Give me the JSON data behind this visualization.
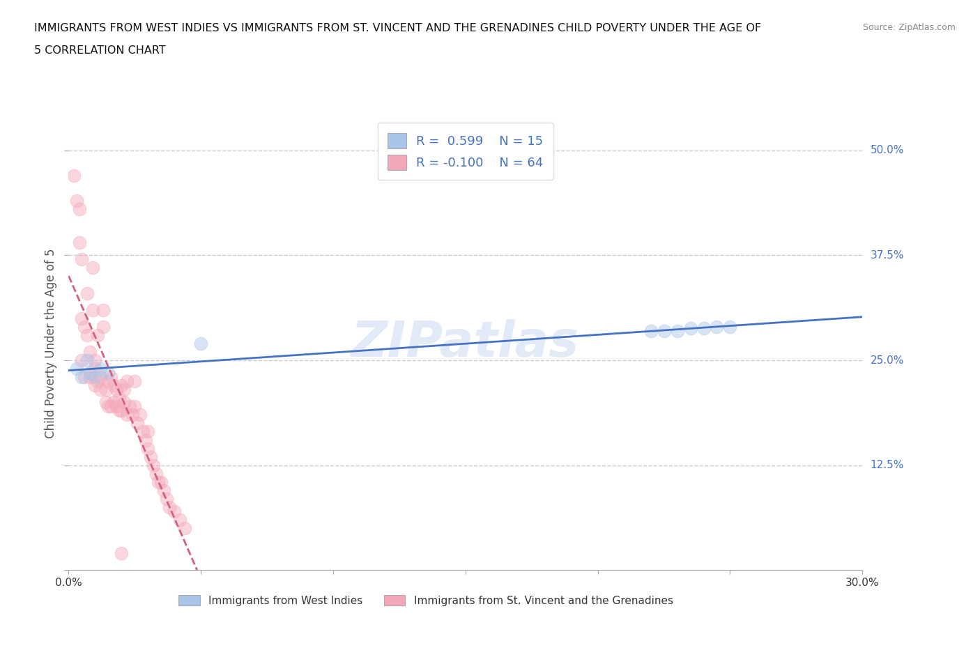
{
  "title_line1": "IMMIGRANTS FROM WEST INDIES VS IMMIGRANTS FROM ST. VINCENT AND THE GRENADINES CHILD POVERTY UNDER THE AGE OF",
  "title_line2": "5 CORRELATION CHART",
  "source": "Source: ZipAtlas.com",
  "ylabel": "Child Poverty Under the Age of 5",
  "watermark": "ZIPatlas",
  "xlim": [
    0.0,
    0.3
  ],
  "ylim": [
    0.0,
    0.54
  ],
  "xticks": [
    0.0,
    0.05,
    0.1,
    0.15,
    0.2,
    0.25,
    0.3
  ],
  "yticks": [
    0.0,
    0.125,
    0.25,
    0.375,
    0.5
  ],
  "right_ylabels": [
    "",
    "12.5%",
    "25.0%",
    "37.5%",
    "50.0%"
  ],
  "blue_R": 0.599,
  "blue_N": 15,
  "pink_R": -0.1,
  "pink_N": 64,
  "blue_color": "#a8c4e8",
  "pink_color": "#f4a7b9",
  "blue_line_color": "#4472c4",
  "pink_line_color": "#d46080",
  "blue_scatter_x": [
    0.003,
    0.005,
    0.007,
    0.008,
    0.01,
    0.012,
    0.015,
    0.05,
    0.22,
    0.225,
    0.23,
    0.235,
    0.24,
    0.245,
    0.25
  ],
  "blue_scatter_y": [
    0.24,
    0.23,
    0.25,
    0.235,
    0.23,
    0.24,
    0.235,
    0.27,
    0.285,
    0.285,
    0.285,
    0.288,
    0.288,
    0.29,
    0.29
  ],
  "pink_scatter_x": [
    0.002,
    0.003,
    0.004,
    0.004,
    0.005,
    0.005,
    0.005,
    0.006,
    0.006,
    0.007,
    0.007,
    0.008,
    0.008,
    0.009,
    0.009,
    0.01,
    0.01,
    0.01,
    0.011,
    0.011,
    0.012,
    0.012,
    0.013,
    0.013,
    0.014,
    0.014,
    0.015,
    0.015,
    0.016,
    0.016,
    0.017,
    0.017,
    0.018,
    0.018,
    0.019,
    0.019,
    0.02,
    0.02,
    0.021,
    0.021,
    0.022,
    0.022,
    0.023,
    0.024,
    0.025,
    0.025,
    0.026,
    0.027,
    0.028,
    0.029,
    0.03,
    0.03,
    0.031,
    0.032,
    0.033,
    0.034,
    0.035,
    0.036,
    0.037,
    0.038,
    0.04,
    0.042,
    0.044,
    0.02
  ],
  "pink_scatter_y": [
    0.47,
    0.44,
    0.43,
    0.39,
    0.37,
    0.3,
    0.25,
    0.29,
    0.23,
    0.28,
    0.33,
    0.26,
    0.23,
    0.31,
    0.36,
    0.22,
    0.24,
    0.25,
    0.28,
    0.225,
    0.215,
    0.23,
    0.31,
    0.29,
    0.2,
    0.215,
    0.195,
    0.225,
    0.195,
    0.23,
    0.22,
    0.2,
    0.195,
    0.215,
    0.19,
    0.205,
    0.19,
    0.22,
    0.2,
    0.215,
    0.185,
    0.225,
    0.195,
    0.185,
    0.195,
    0.225,
    0.175,
    0.185,
    0.165,
    0.155,
    0.145,
    0.165,
    0.135,
    0.125,
    0.115,
    0.105,
    0.105,
    0.095,
    0.085,
    0.075,
    0.07,
    0.06,
    0.05,
    0.02
  ],
  "legend_label1": "Immigrants from West Indies",
  "legend_label2": "Immigrants from St. Vincent and the Grenadines",
  "gridline_color": "#cccccc",
  "background_color": "#ffffff",
  "scatter_size": 180,
  "scatter_alpha": 0.45,
  "scatter_edgewidth": 0.8
}
